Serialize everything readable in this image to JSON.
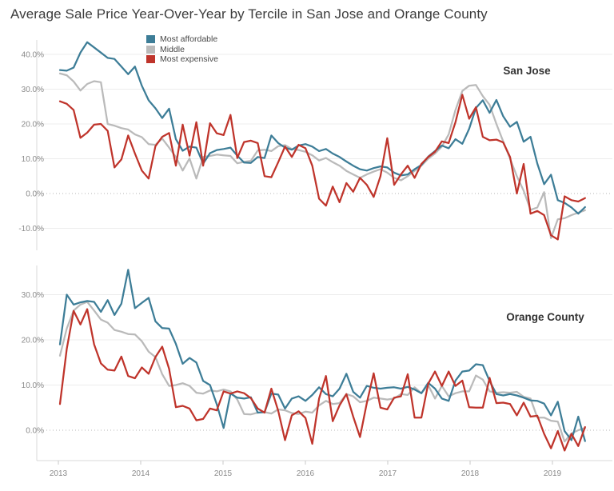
{
  "title": "Average Sale Price Year-Over-Year by Tercile in San Jose and Orange County",
  "legend": {
    "position": "top",
    "items": [
      {
        "label": "Most affordable",
        "color": "#3d7d97"
      },
      {
        "label": "Middle",
        "color": "#bababa"
      },
      {
        "label": "Most expensive",
        "color": "#bf342b"
      }
    ]
  },
  "x_axis": {
    "years": [
      2013,
      2014,
      2015,
      2016,
      2017,
      2018,
      2019
    ],
    "interval": "monthly",
    "start": "2013-01",
    "end": "2019-06"
  },
  "chart_data": [
    {
      "type": "line",
      "title": "San Jose",
      "ylabel": "",
      "y_tick_values": [
        40,
        30,
        20,
        10,
        0,
        -10
      ],
      "y_tick_format": "percent_1dp",
      "ylim": [
        -15,
        45
      ],
      "grid": "horizontal",
      "zero_line": "dotted",
      "series": [
        {
          "name": "Most affordable",
          "color": "#3d7d97",
          "values": [
            35.5,
            35.3,
            36.2,
            40.5,
            43.5,
            42.0,
            40.5,
            39.0,
            38.7,
            36.5,
            34.3,
            36.5,
            31.0,
            26.8,
            24.5,
            21.7,
            24.4,
            15.6,
            12.3,
            13.5,
            13.2,
            8.6,
            11.6,
            12.5,
            12.8,
            13.2,
            10.9,
            8.9,
            8.8,
            10.5,
            10.2,
            16.7,
            14.5,
            13.2,
            12.6,
            13.8,
            14.2,
            13.5,
            12.2,
            12.8,
            11.5,
            10.5,
            9.2,
            8.0,
            7.0,
            6.6,
            7.3,
            7.8,
            7.5,
            6.0,
            5.2,
            5.5,
            7.0,
            8.2,
            10.6,
            12.2,
            13.8,
            13.0,
            15.6,
            14.3,
            18.6,
            24.6,
            26.8,
            23.2,
            26.9,
            22.2,
            19.2,
            20.6,
            14.9,
            16.3,
            8.6,
            2.7,
            5.4,
            -1.9,
            -2.7,
            -4.0,
            -5.8,
            -3.9
          ]
        },
        {
          "name": "Middle",
          "color": "#bababa",
          "values": [
            34.5,
            34.0,
            32.2,
            29.6,
            31.5,
            32.3,
            32.0,
            20.0,
            19.5,
            18.8,
            18.4,
            17.0,
            16.2,
            14.2,
            14.0,
            15.8,
            13.2,
            10.5,
            6.6,
            10.1,
            4.3,
            10.5,
            10.8,
            11.2,
            11.0,
            10.8,
            8.7,
            9.1,
            9.4,
            12.4,
            12.6,
            12.2,
            13.6,
            13.9,
            12.8,
            12.5,
            12.0,
            11.0,
            9.5,
            10.2,
            9.0,
            8.0,
            6.5,
            5.5,
            4.5,
            5.5,
            6.3,
            7.0,
            6.0,
            4.5,
            3.8,
            5.0,
            6.5,
            8.0,
            10.0,
            11.5,
            13.5,
            17.0,
            24.0,
            29.5,
            31.0,
            31.2,
            28.0,
            25.5,
            20.0,
            15.0,
            10.0,
            5.0,
            0.8,
            -4.7,
            -4.0,
            0.4,
            -12.8,
            -7.4,
            -7.1,
            -6.2,
            -5.5,
            -4.8
          ]
        },
        {
          "name": "Most expensive",
          "color": "#bf342b",
          "values": [
            26.5,
            25.8,
            24.0,
            16.0,
            17.5,
            19.8,
            20.0,
            18.0,
            7.5,
            9.8,
            16.7,
            11.5,
            6.6,
            4.3,
            13.6,
            16.3,
            17.4,
            8.0,
            19.8,
            10.9,
            20.5,
            8.0,
            20.2,
            17.3,
            16.8,
            22.6,
            10.2,
            14.8,
            15.2,
            14.5,
            5.0,
            4.7,
            9.0,
            13.5,
            10.5,
            14.0,
            13.0,
            8.0,
            -1.5,
            -3.5,
            2.0,
            -2.5,
            3.0,
            0.5,
            4.5,
            2.5,
            -1.0,
            5.0,
            15.9,
            2.5,
            5.5,
            8.0,
            4.5,
            8.5,
            10.5,
            12.0,
            15.0,
            14.5,
            20.5,
            28.4,
            21.5,
            24.8,
            16.3,
            15.3,
            15.5,
            14.7,
            10.5,
            0.0,
            8.5,
            -5.8,
            -5.0,
            -6.2,
            -12.0,
            -13.2,
            -0.8,
            -1.9,
            -2.3,
            -1.3
          ]
        }
      ]
    },
    {
      "type": "line",
      "title": "Orange County",
      "ylabel": "",
      "y_tick_values": [
        30,
        20,
        10,
        0
      ],
      "y_tick_format": "percent_1dp",
      "ylim": [
        -6.5,
        36.5
      ],
      "grid": "horizontal",
      "zero_line": "dotted",
      "series": [
        {
          "name": "Most affordable",
          "color": "#3d7d97",
          "values": [
            19.0,
            30.0,
            27.8,
            28.3,
            28.6,
            28.4,
            26.2,
            28.8,
            25.5,
            28.0,
            35.5,
            27.0,
            28.2,
            29.3,
            24.1,
            22.6,
            22.5,
            19.1,
            14.7,
            16.0,
            15.0,
            10.9,
            10.0,
            5.7,
            0.5,
            8.1,
            7.2,
            7.0,
            7.3,
            3.9,
            4.0,
            8.1,
            7.9,
            4.8,
            7.0,
            7.5,
            6.5,
            7.8,
            9.5,
            8.0,
            7.5,
            9.2,
            12.5,
            8.5,
            7.2,
            9.8,
            9.4,
            9.2,
            9.4,
            9.5,
            9.2,
            9.6,
            9.0,
            8.2,
            10.5,
            9.2,
            7.0,
            6.5,
            11.0,
            13.0,
            13.2,
            14.6,
            14.4,
            10.9,
            8.0,
            7.7,
            8.0,
            7.7,
            7.2,
            6.6,
            6.5,
            5.9,
            3.3,
            6.3,
            -0.2,
            -2.2,
            3.0,
            -2.4
          ]
        },
        {
          "name": "Middle",
          "color": "#bababa",
          "values": [
            16.5,
            22.5,
            26.5,
            27.8,
            28.4,
            26.5,
            24.5,
            23.8,
            22.2,
            21.8,
            21.3,
            21.2,
            19.7,
            17.4,
            16.2,
            12.4,
            9.8,
            10.0,
            10.4,
            9.8,
            8.3,
            8.1,
            8.8,
            8.6,
            9.0,
            8.6,
            6.8,
            3.6,
            3.5,
            3.9,
            4.0,
            3.7,
            4.6,
            4.4,
            3.8,
            3.6,
            4.1,
            3.9,
            5.5,
            6.5,
            5.8,
            6.0,
            8.0,
            7.5,
            6.2,
            6.5,
            7.2,
            7.0,
            6.8,
            7.0,
            8.0,
            7.8,
            9.5,
            8.2,
            10.0,
            7.0,
            9.8,
            7.5,
            8.2,
            8.6,
            8.6,
            12.1,
            11.2,
            8.6,
            8.3,
            8.4,
            8.3,
            8.5,
            7.4,
            7.0,
            2.8,
            2.8,
            2.1,
            1.9,
            -2.5,
            -0.7,
            0.0,
            0.5
          ]
        },
        {
          "name": "Most expensive",
          "color": "#bf342b",
          "values": [
            5.8,
            18.0,
            26.4,
            23.4,
            26.8,
            19.0,
            14.8,
            13.4,
            13.2,
            16.3,
            12.0,
            11.5,
            13.9,
            12.5,
            16.2,
            18.5,
            13.6,
            5.1,
            5.4,
            4.8,
            2.2,
            2.5,
            4.8,
            4.4,
            8.6,
            8.1,
            8.6,
            8.2,
            7.1,
            4.8,
            3.9,
            9.2,
            4.3,
            -2.2,
            3.3,
            4.2,
            2.7,
            -3.0,
            7.0,
            12.0,
            2.0,
            5.5,
            8.0,
            3.0,
            -1.5,
            6.0,
            12.6,
            5.0,
            4.6,
            7.2,
            7.5,
            12.4,
            2.8,
            2.8,
            10.3,
            13.0,
            9.8,
            13.0,
            9.8,
            11.0,
            5.1,
            5.0,
            5.0,
            11.6,
            6.0,
            6.1,
            5.8,
            3.3,
            6.1,
            3.0,
            3.2,
            -0.8,
            -4.0,
            -0.2,
            -4.5,
            -0.8,
            -3.5,
            0.7
          ]
        }
      ]
    }
  ]
}
